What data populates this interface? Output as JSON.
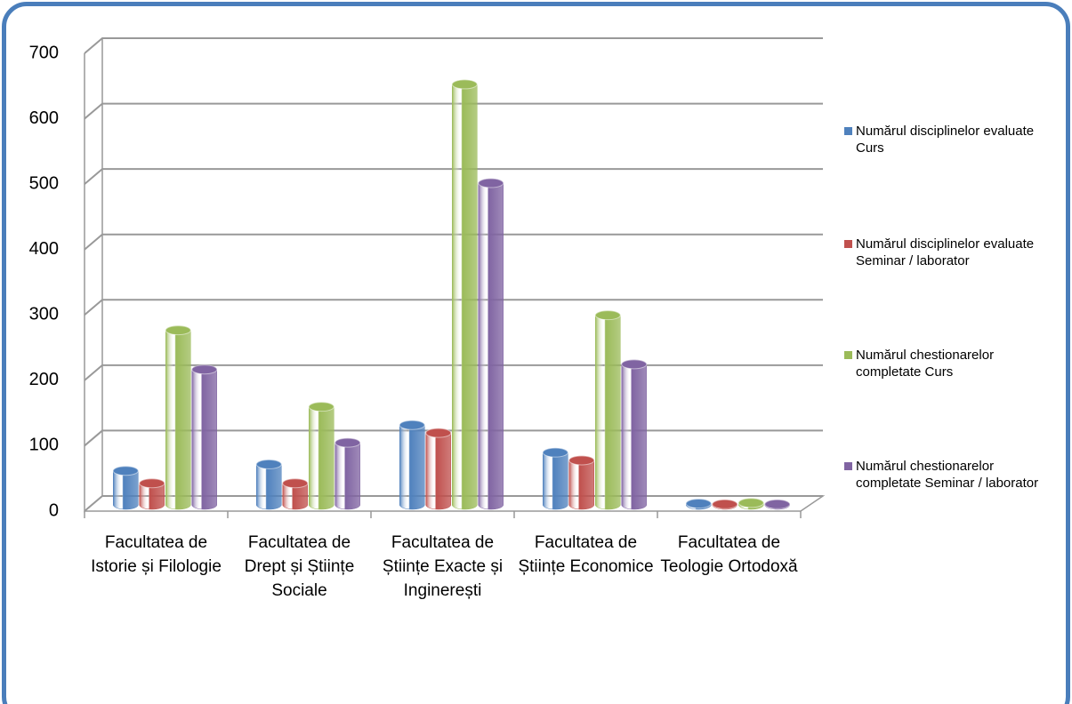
{
  "chart_data": {
    "type": "bar",
    "categories": [
      "Facultatea de Istorie și Filologie",
      "Facultatea de Drept și Științe Sociale",
      "Facultatea de Științe Exacte și Inginerești",
      "Facultatea de Științe Economice",
      "Facultatea de Teologie Ortodoxă"
    ],
    "series": [
      {
        "name": "Numărul disciplinelor evaluate Curs",
        "color": "#4f81bd",
        "values": [
          52,
          62,
          122,
          80,
          2
        ]
      },
      {
        "name": "Numărul disciplinelor evaluate Seminar / laborator",
        "color": "#c0504d",
        "values": [
          33,
          33,
          110,
          68,
          1
        ]
      },
      {
        "name": "Numărul chestionarelor completate Curs",
        "color": "#9bbb59",
        "values": [
          267,
          150,
          643,
          290,
          3
        ]
      },
      {
        "name": "Numărul chestionarelor completate Seminar / laborator",
        "color": "#8064a2",
        "values": [
          207,
          95,
          492,
          215,
          1
        ]
      }
    ],
    "ylim": [
      0,
      700
    ],
    "yticks": [
      0,
      100,
      200,
      300,
      400,
      500,
      600,
      700
    ],
    "grid": true,
    "legend": "right"
  }
}
